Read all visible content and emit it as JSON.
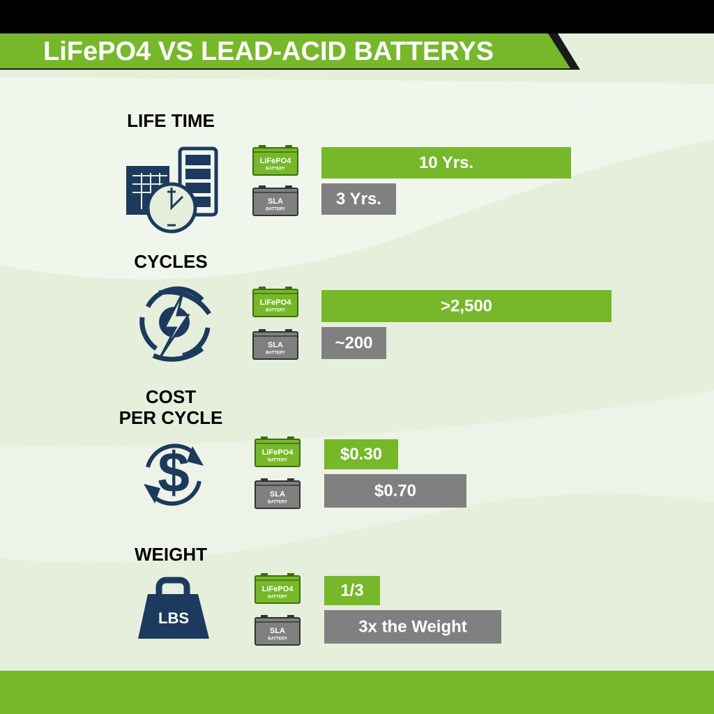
{
  "header": {
    "title": "LiFePO4 VS LEAD-ACID BATTERYS"
  },
  "sections": [
    {
      "heading": [
        "LIFE TIME"
      ],
      "rows": [
        {
          "battery": "LiFePO4",
          "battery_sub": "BATTERY",
          "value": "10 Yrs."
        },
        {
          "battery": "SLA",
          "battery_sub": "BATTERY",
          "value": "3 Yrs."
        }
      ]
    },
    {
      "heading": [
        "CYCLES"
      ],
      "rows": [
        {
          "battery": "LiFePO4",
          "battery_sub": "BATTERY",
          "value": ">2,500"
        },
        {
          "battery": "SLA",
          "battery_sub": "BATTERY",
          "value": "~200"
        }
      ]
    },
    {
      "heading": [
        "COST",
        "PER CYCLE"
      ],
      "rows": [
        {
          "battery": "LiFePO4",
          "battery_sub": "BATTERY",
          "value": "$0.30"
        },
        {
          "battery": "SLA",
          "battery_sub": "BATTERY",
          "value": "$0.70"
        }
      ]
    },
    {
      "heading": [
        "WEIGHT"
      ],
      "icon_text": "LBS",
      "rows": [
        {
          "battery": "LiFePO4",
          "battery_sub": "BATTERY",
          "value": "1/3"
        },
        {
          "battery": "SLA",
          "battery_sub": "BATTERY",
          "value": "3x the Weight"
        }
      ]
    }
  ]
}
